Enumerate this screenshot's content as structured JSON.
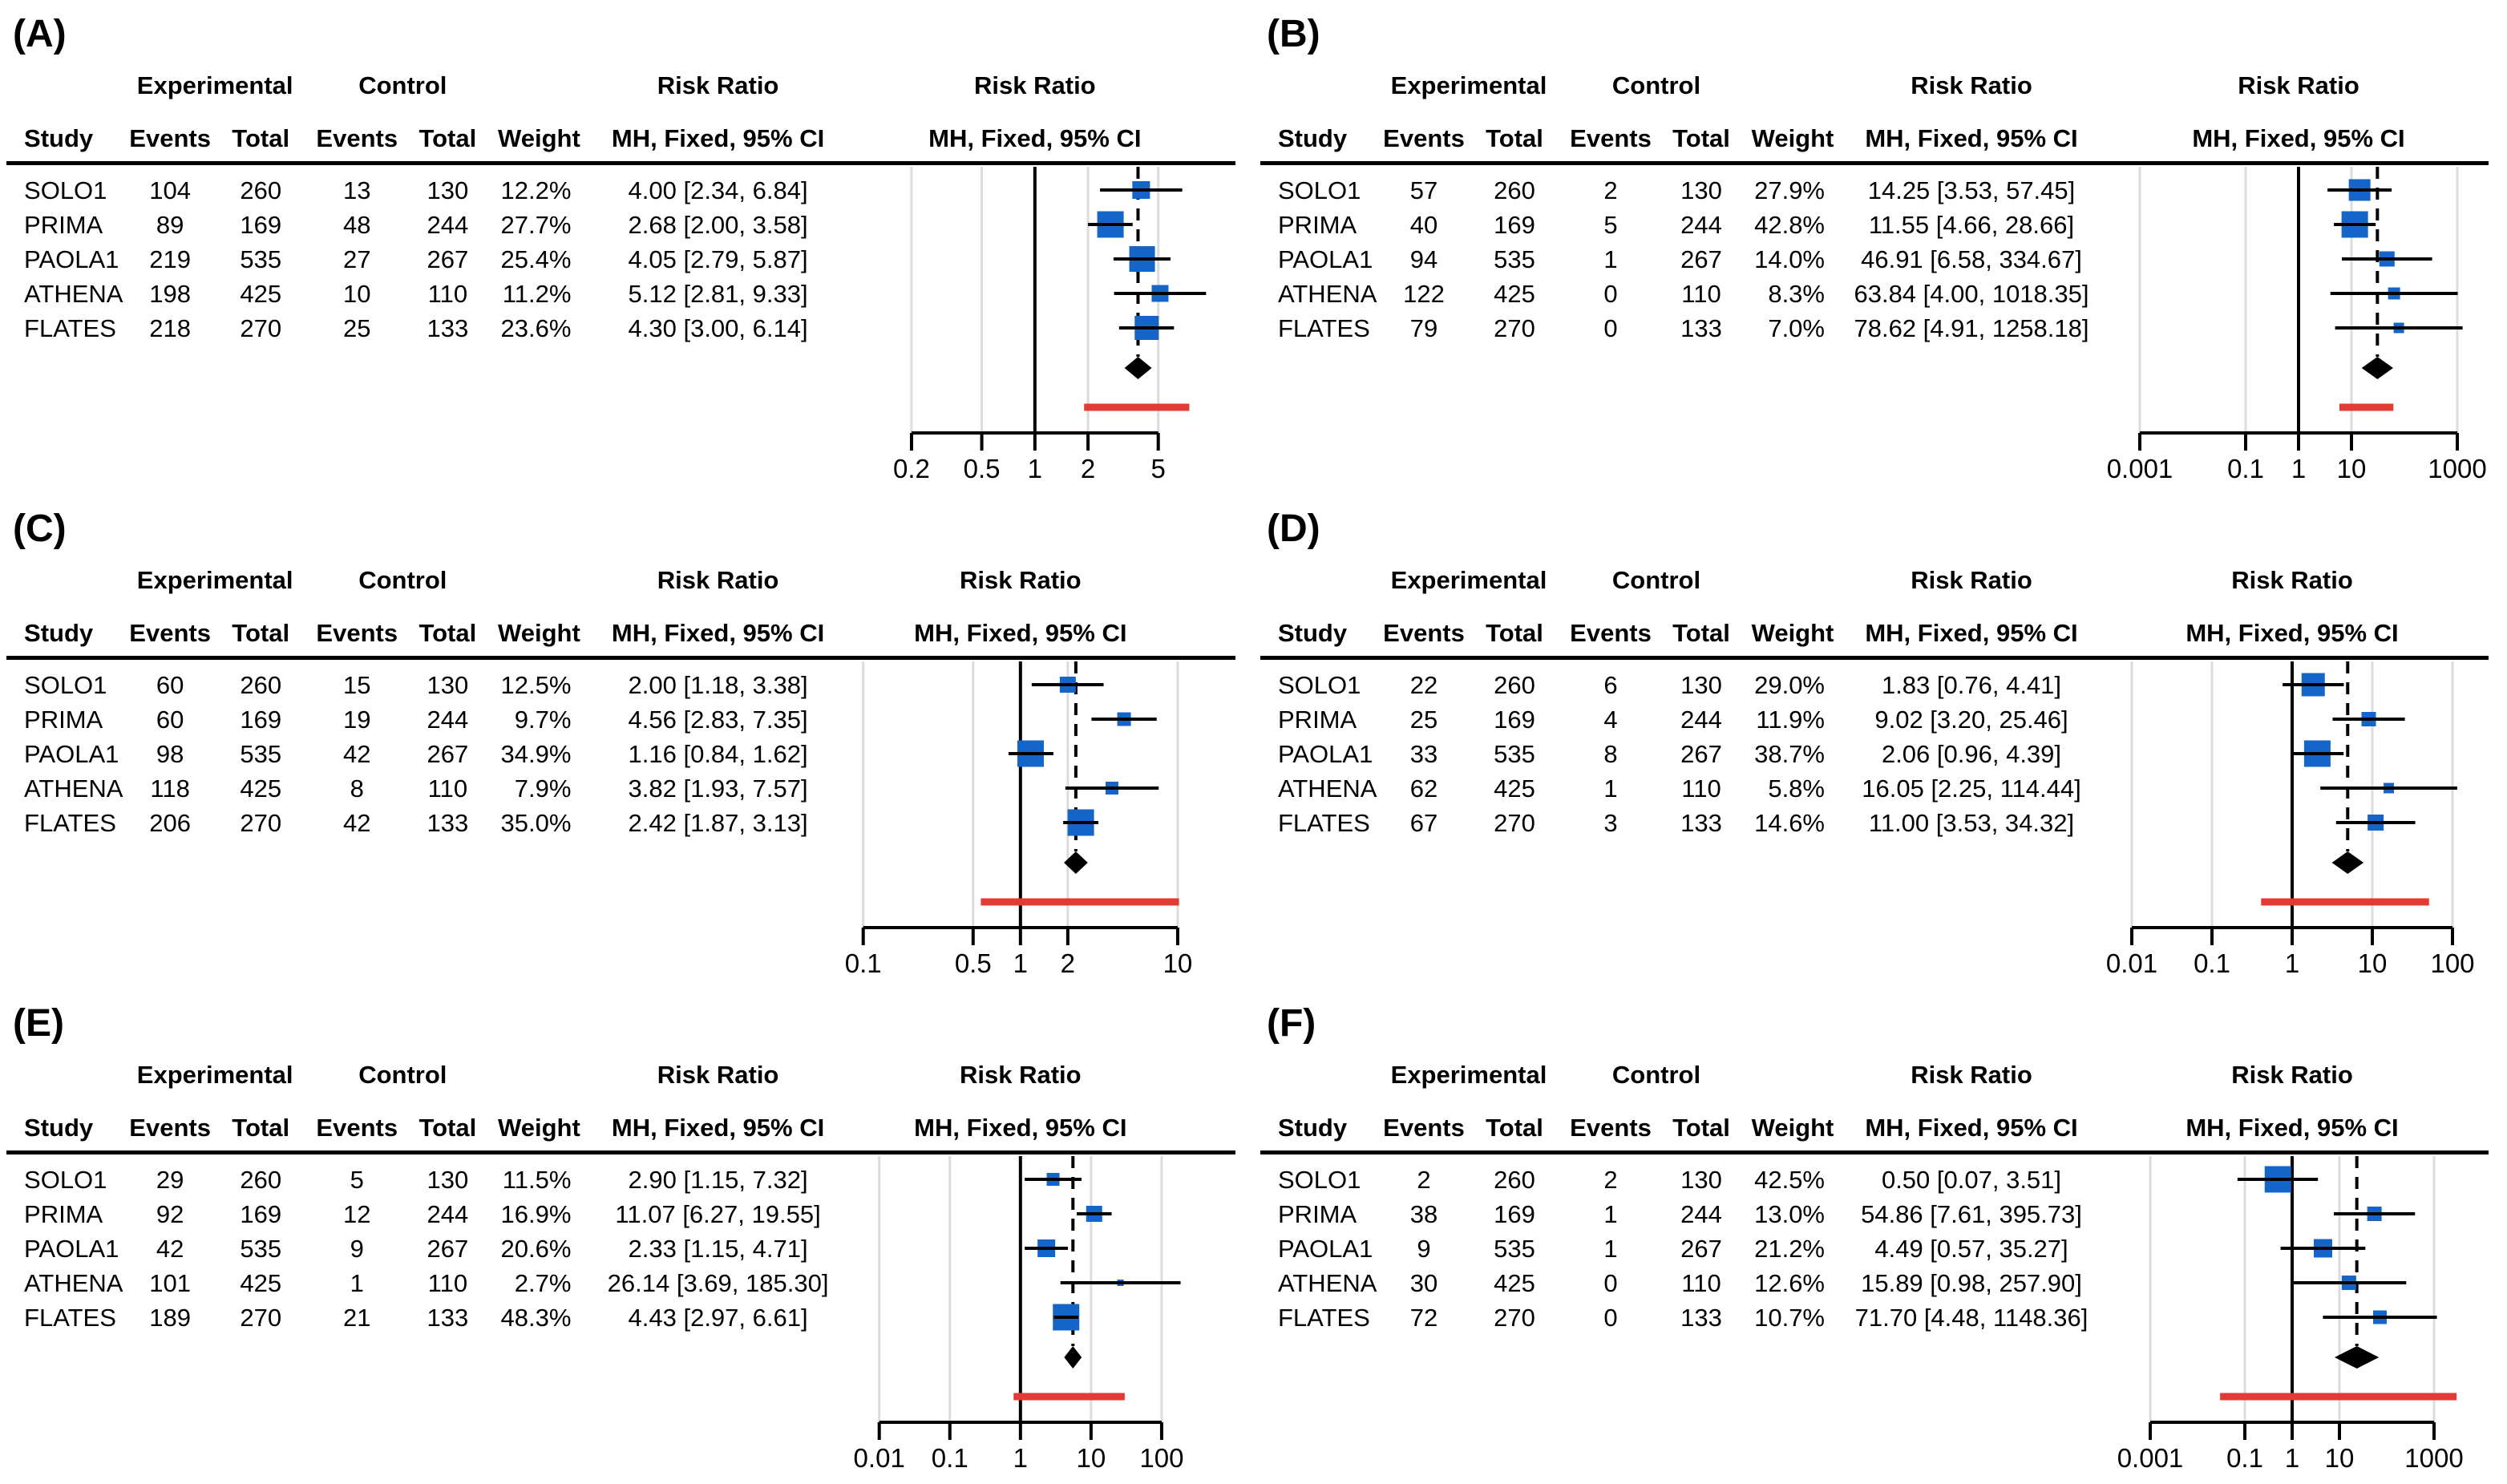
{
  "figure": {
    "square_color": "#1565c8",
    "diamond_color": "#000000",
    "prediction_color": "#e23b36",
    "gridline_color": "#dcdcdc",
    "line_color": "#000000"
  },
  "headers": {
    "group_experimental": "Experimental",
    "group_control": "Control",
    "group_risk_ratio": "Risk Ratio",
    "col_study": "Study",
    "col_events": "Events",
    "col_total": "Total",
    "col_weight": "Weight",
    "col_ci": "MH, Fixed, 95% CI"
  },
  "chart_data": [
    {
      "type": "forest",
      "panel": "(A)",
      "effect_measure": "Risk Ratio",
      "model": "MH, Fixed, 95% CI",
      "axis_ticks": [
        0.2,
        0.5,
        1,
        2,
        5
      ],
      "log_scale": true,
      "studies": [
        {
          "study": "SOLO1",
          "exp_events": 104,
          "exp_total": 260,
          "ctrl_events": 13,
          "ctrl_total": 130,
          "weight_label": "12.2%",
          "weight": 12.2,
          "rr": 4.0,
          "ci_low": 2.34,
          "ci_high": 6.84,
          "ci_label": "4.00 [2.34, 6.84]"
        },
        {
          "study": "PRIMA",
          "exp_events": 89,
          "exp_total": 169,
          "ctrl_events": 48,
          "ctrl_total": 244,
          "weight_label": "27.7%",
          "weight": 27.7,
          "rr": 2.68,
          "ci_low": 2.0,
          "ci_high": 3.58,
          "ci_label": "2.68 [2.00, 3.58]"
        },
        {
          "study": "PAOLA1",
          "exp_events": 219,
          "exp_total": 535,
          "ctrl_events": 27,
          "ctrl_total": 267,
          "weight_label": "25.4%",
          "weight": 25.4,
          "rr": 4.05,
          "ci_low": 2.79,
          "ci_high": 5.87,
          "ci_label": "4.05 [2.79, 5.87]"
        },
        {
          "study": "ATHENA",
          "exp_events": 198,
          "exp_total": 425,
          "ctrl_events": 10,
          "ctrl_total": 110,
          "weight_label": "11.2%",
          "weight": 11.2,
          "rr": 5.12,
          "ci_low": 2.81,
          "ci_high": 9.33,
          "ci_label": "5.12 [2.81, 9.33]"
        },
        {
          "study": "FLATES",
          "exp_events": 218,
          "exp_total": 270,
          "ctrl_events": 25,
          "ctrl_total": 133,
          "weight_label": "23.6%",
          "weight": 23.6,
          "rr": 4.3,
          "ci_low": 3.0,
          "ci_high": 6.14,
          "ci_label": "4.30 [3.00, 6.14]"
        }
      ],
      "pooled": {
        "rr": 3.84,
        "ci_low": 3.22,
        "ci_high": 4.59
      },
      "prediction_interval": {
        "low": 1.9,
        "high": 7.5
      }
    },
    {
      "type": "forest",
      "panel": "(B)",
      "effect_measure": "Risk Ratio",
      "model": "MH, Fixed, 95% CI",
      "axis_ticks": [
        0.001,
        0.1,
        1,
        10,
        1000
      ],
      "log_scale": true,
      "studies": [
        {
          "study": "SOLO1",
          "exp_events": 57,
          "exp_total": 260,
          "ctrl_events": 2,
          "ctrl_total": 130,
          "weight_label": "27.9%",
          "weight": 27.9,
          "rr": 14.25,
          "ci_low": 3.53,
          "ci_high": 57.45,
          "ci_label": "14.25 [3.53, 57.45]"
        },
        {
          "study": "PRIMA",
          "exp_events": 40,
          "exp_total": 169,
          "ctrl_events": 5,
          "ctrl_total": 244,
          "weight_label": "42.8%",
          "weight": 42.8,
          "rr": 11.55,
          "ci_low": 4.66,
          "ci_high": 28.66,
          "ci_label": "11.55 [4.66, 28.66]"
        },
        {
          "study": "PAOLA1",
          "exp_events": 94,
          "exp_total": 535,
          "ctrl_events": 1,
          "ctrl_total": 267,
          "weight_label": "14.0%",
          "weight": 14.0,
          "rr": 46.91,
          "ci_low": 6.58,
          "ci_high": 334.67,
          "ci_label": "46.91 [6.58, 334.67]"
        },
        {
          "study": "ATHENA",
          "exp_events": 122,
          "exp_total": 425,
          "ctrl_events": 0,
          "ctrl_total": 110,
          "weight_label": "8.3%",
          "weight": 8.3,
          "rr": 63.84,
          "ci_low": 4.0,
          "ci_high": 1018.35,
          "ci_label": "63.84 [4.00, 1018.35]"
        },
        {
          "study": "FLATES",
          "exp_events": 79,
          "exp_total": 270,
          "ctrl_events": 0,
          "ctrl_total": 133,
          "weight_label": "7.0%",
          "weight": 7.0,
          "rr": 78.62,
          "ci_low": 4.91,
          "ci_high": 1258.18,
          "ci_label": "78.62 [4.91, 1258.18]"
        }
      ],
      "pooled": {
        "rr": 30.9,
        "ci_low": 15.6,
        "ci_high": 61.3
      },
      "prediction_interval": {
        "low": 5.9,
        "high": 62
      }
    },
    {
      "type": "forest",
      "panel": "(C)",
      "effect_measure": "Risk Ratio",
      "model": "MH, Fixed, 95% CI",
      "axis_ticks": [
        0.1,
        0.5,
        1,
        2,
        10
      ],
      "log_scale": true,
      "studies": [
        {
          "study": "SOLO1",
          "exp_events": 60,
          "exp_total": 260,
          "ctrl_events": 15,
          "ctrl_total": 130,
          "weight_label": "12.5%",
          "weight": 12.5,
          "rr": 2.0,
          "ci_low": 1.18,
          "ci_high": 3.38,
          "ci_label": "2.00 [1.18, 3.38]"
        },
        {
          "study": "PRIMA",
          "exp_events": 60,
          "exp_total": 169,
          "ctrl_events": 19,
          "ctrl_total": 244,
          "weight_label": "9.7%",
          "weight": 9.7,
          "rr": 4.56,
          "ci_low": 2.83,
          "ci_high": 7.35,
          "ci_label": "4.56 [2.83, 7.35]"
        },
        {
          "study": "PAOLA1",
          "exp_events": 98,
          "exp_total": 535,
          "ctrl_events": 42,
          "ctrl_total": 267,
          "weight_label": "34.9%",
          "weight": 34.9,
          "rr": 1.16,
          "ci_low": 0.84,
          "ci_high": 1.62,
          "ci_label": "1.16 [0.84, 1.62]"
        },
        {
          "study": "ATHENA",
          "exp_events": 118,
          "exp_total": 425,
          "ctrl_events": 8,
          "ctrl_total": 110,
          "weight_label": "7.9%",
          "weight": 7.9,
          "rr": 3.82,
          "ci_low": 1.93,
          "ci_high": 7.57,
          "ci_label": "3.82 [1.93, 7.57]"
        },
        {
          "study": "FLATES",
          "exp_events": 206,
          "exp_total": 270,
          "ctrl_events": 42,
          "ctrl_total": 133,
          "weight_label": "35.0%",
          "weight": 35.0,
          "rr": 2.42,
          "ci_low": 1.87,
          "ci_high": 3.13,
          "ci_label": "2.42 [1.87, 3.13]"
        }
      ],
      "pooled": {
        "rr": 2.25,
        "ci_low": 1.89,
        "ci_high": 2.68
      },
      "prediction_interval": {
        "low": 0.56,
        "high": 10.2
      }
    },
    {
      "type": "forest",
      "panel": "(D)",
      "effect_measure": "Risk Ratio",
      "model": "MH, Fixed, 95% CI",
      "axis_ticks": [
        0.01,
        0.1,
        1,
        10,
        100
      ],
      "log_scale": true,
      "studies": [
        {
          "study": "SOLO1",
          "exp_events": 22,
          "exp_total": 260,
          "ctrl_events": 6,
          "ctrl_total": 130,
          "weight_label": "29.0%",
          "weight": 29.0,
          "rr": 1.83,
          "ci_low": 0.76,
          "ci_high": 4.41,
          "ci_label": "1.83 [0.76, 4.41]"
        },
        {
          "study": "PRIMA",
          "exp_events": 25,
          "exp_total": 169,
          "ctrl_events": 4,
          "ctrl_total": 244,
          "weight_label": "11.9%",
          "weight": 11.9,
          "rr": 9.02,
          "ci_low": 3.2,
          "ci_high": 25.46,
          "ci_label": "9.02 [3.20, 25.46]"
        },
        {
          "study": "PAOLA1",
          "exp_events": 33,
          "exp_total": 535,
          "ctrl_events": 8,
          "ctrl_total": 267,
          "weight_label": "38.7%",
          "weight": 38.7,
          "rr": 2.06,
          "ci_low": 0.96,
          "ci_high": 4.39,
          "ci_label": "2.06 [0.96, 4.39]"
        },
        {
          "study": "ATHENA",
          "exp_events": 62,
          "exp_total": 425,
          "ctrl_events": 1,
          "ctrl_total": 110,
          "weight_label": "5.8%",
          "weight": 5.8,
          "rr": 16.05,
          "ci_low": 2.25,
          "ci_high": 114.44,
          "ci_label": "16.05 [2.25, 114.44]"
        },
        {
          "study": "FLATES",
          "exp_events": 67,
          "exp_total": 270,
          "ctrl_events": 3,
          "ctrl_total": 133,
          "weight_label": "14.6%",
          "weight": 14.6,
          "rr": 11.0,
          "ci_low": 3.53,
          "ci_high": 34.32,
          "ci_label": "11.00 [3.53, 34.32]"
        }
      ],
      "pooled": {
        "rr": 4.93,
        "ci_low": 3.13,
        "ci_high": 7.77
      },
      "prediction_interval": {
        "low": 0.41,
        "high": 51
      }
    },
    {
      "type": "forest",
      "panel": "(E)",
      "effect_measure": "Risk Ratio",
      "model": "MH, Fixed, 95% CI",
      "axis_ticks": [
        0.01,
        0.1,
        1,
        10,
        100
      ],
      "log_scale": true,
      "studies": [
        {
          "study": "SOLO1",
          "exp_events": 29,
          "exp_total": 260,
          "ctrl_events": 5,
          "ctrl_total": 130,
          "weight_label": "11.5%",
          "weight": 11.5,
          "rr": 2.9,
          "ci_low": 1.15,
          "ci_high": 7.32,
          "ci_label": "2.90 [1.15, 7.32]"
        },
        {
          "study": "PRIMA",
          "exp_events": 92,
          "exp_total": 169,
          "ctrl_events": 12,
          "ctrl_total": 244,
          "weight_label": "16.9%",
          "weight": 16.9,
          "rr": 11.07,
          "ci_low": 6.27,
          "ci_high": 19.55,
          "ci_label": "11.07 [6.27, 19.55]"
        },
        {
          "study": "PAOLA1",
          "exp_events": 42,
          "exp_total": 535,
          "ctrl_events": 9,
          "ctrl_total": 267,
          "weight_label": "20.6%",
          "weight": 20.6,
          "rr": 2.33,
          "ci_low": 1.15,
          "ci_high": 4.71,
          "ci_label": "2.33 [1.15, 4.71]"
        },
        {
          "study": "ATHENA",
          "exp_events": 101,
          "exp_total": 425,
          "ctrl_events": 1,
          "ctrl_total": 110,
          "weight_label": "2.7%",
          "weight": 2.7,
          "rr": 26.14,
          "ci_low": 3.69,
          "ci_high": 185.3,
          "ci_label": "26.14 [3.69, 185.30]"
        },
        {
          "study": "FLATES",
          "exp_events": 189,
          "exp_total": 270,
          "ctrl_events": 21,
          "ctrl_total": 133,
          "weight_label": "48.3%",
          "weight": 48.3,
          "rr": 4.43,
          "ci_low": 2.97,
          "ci_high": 6.61,
          "ci_label": "4.43 [2.97, 6.61]"
        }
      ],
      "pooled": {
        "rr": 5.54,
        "ci_low": 4.16,
        "ci_high": 7.37
      },
      "prediction_interval": {
        "low": 0.8,
        "high": 30
      }
    },
    {
      "type": "forest",
      "panel": "(F)",
      "effect_measure": "Risk Ratio",
      "model": "MH, Fixed, 95% CI",
      "axis_ticks": [
        0.001,
        0.1,
        1,
        10,
        1000
      ],
      "log_scale": true,
      "studies": [
        {
          "study": "SOLO1",
          "exp_events": 2,
          "exp_total": 260,
          "ctrl_events": 2,
          "ctrl_total": 130,
          "weight_label": "42.5%",
          "weight": 42.5,
          "rr": 0.5,
          "ci_low": 0.07,
          "ci_high": 3.51,
          "ci_label": "0.50 [0.07, 3.51]"
        },
        {
          "study": "PRIMA",
          "exp_events": 38,
          "exp_total": 169,
          "ctrl_events": 1,
          "ctrl_total": 244,
          "weight_label": "13.0%",
          "weight": 13.0,
          "rr": 54.86,
          "ci_low": 7.61,
          "ci_high": 395.73,
          "ci_label": "54.86 [7.61, 395.73]"
        },
        {
          "study": "PAOLA1",
          "exp_events": 9,
          "exp_total": 535,
          "ctrl_events": 1,
          "ctrl_total": 267,
          "weight_label": "21.2%",
          "weight": 21.2,
          "rr": 4.49,
          "ci_low": 0.57,
          "ci_high": 35.27,
          "ci_label": "4.49 [0.57, 35.27]"
        },
        {
          "study": "ATHENA",
          "exp_events": 30,
          "exp_total": 425,
          "ctrl_events": 0,
          "ctrl_total": 110,
          "weight_label": "12.6%",
          "weight": 12.6,
          "rr": 15.89,
          "ci_low": 0.98,
          "ci_high": 257.9,
          "ci_label": "15.89 [0.98, 257.90]"
        },
        {
          "study": "FLATES",
          "exp_events": 72,
          "exp_total": 270,
          "ctrl_events": 0,
          "ctrl_total": 133,
          "weight_label": "10.7%",
          "weight": 10.7,
          "rr": 71.7,
          "ci_low": 4.48,
          "ci_high": 1148.36,
          "ci_label": "71.70 [4.48, 1148.36]"
        }
      ],
      "pooled": {
        "rr": 23.3,
        "ci_low": 7.9,
        "ci_high": 68.3
      },
      "prediction_interval": {
        "low": 0.03,
        "high": 3000
      }
    }
  ]
}
